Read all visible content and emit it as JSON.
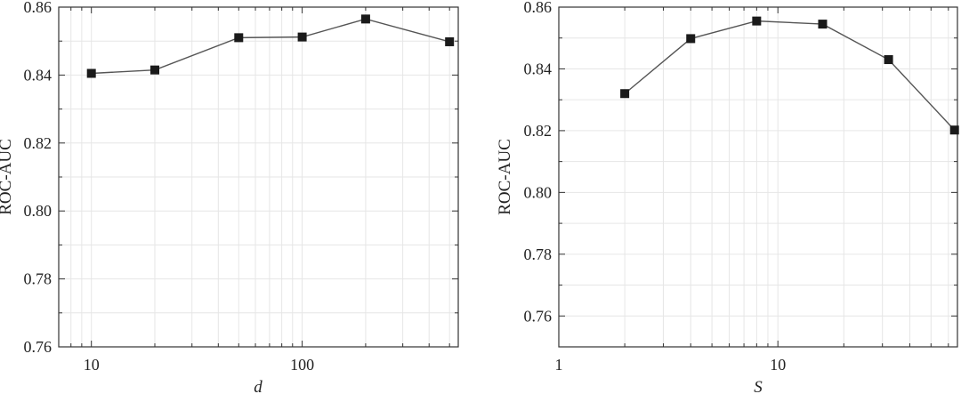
{
  "chart_data": [
    {
      "type": "line",
      "x": [
        10,
        20,
        50,
        100,
        200,
        500
      ],
      "series": [
        {
          "values": [
            0.8405,
            0.8415,
            0.851,
            0.8512,
            0.8565,
            0.8498
          ]
        }
      ],
      "xlabel": "d",
      "ylabel": "ROC-AUC",
      "xscale": "log",
      "xlim": [
        7,
        550
      ],
      "ylim": [
        0.76,
        0.86
      ],
      "xticks": [
        10,
        100
      ],
      "xtick_labels": [
        "10",
        "100"
      ],
      "yticks": [
        0.76,
        0.78,
        0.8,
        0.82,
        0.84,
        0.86
      ],
      "ytick_labels": [
        "0.76",
        "0.78",
        "0.80",
        "0.82",
        "0.84",
        "0.86"
      ],
      "grid": true
    },
    {
      "type": "line",
      "x": [
        2,
        4,
        8,
        16,
        32,
        64
      ],
      "series": [
        {
          "values": [
            0.832,
            0.8498,
            0.8555,
            0.8545,
            0.843,
            0.8202
          ]
        }
      ],
      "xlabel": "S",
      "ylabel": "ROC-AUC",
      "xscale": "log",
      "xlim": [
        1,
        66
      ],
      "ylim": [
        0.75,
        0.86
      ],
      "xticks": [
        1,
        10
      ],
      "xtick_labels": [
        "1",
        "10"
      ],
      "yticks": [
        0.76,
        0.78,
        0.8,
        0.82,
        0.84,
        0.86
      ],
      "ytick_labels": [
        "0.76",
        "0.78",
        "0.80",
        "0.82",
        "0.84",
        "0.86"
      ],
      "grid": true
    }
  ]
}
